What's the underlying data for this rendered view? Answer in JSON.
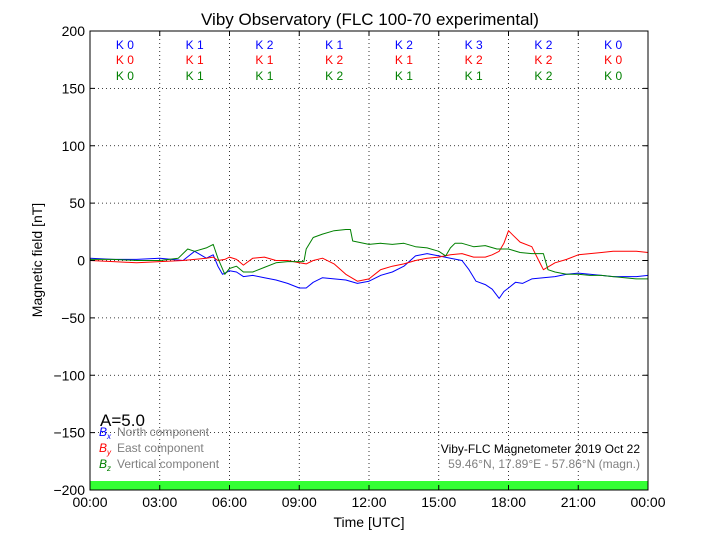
{
  "chart_data": {
    "type": "line",
    "title": "Viby Observatory (FLC 100-70 experimental)",
    "xlabel": "Time [UTC]",
    "ylabel": "Magnetic field [nT]",
    "xlim": [
      0,
      24
    ],
    "ylim": [
      -200,
      200
    ],
    "x_ticks": [
      "00:00",
      "03:00",
      "06:00",
      "09:00",
      "12:00",
      "15:00",
      "18:00",
      "21:00",
      "00:00"
    ],
    "y_ticks": [
      "200",
      "150",
      "100",
      "50",
      "0",
      "−50",
      "−100",
      "−150",
      "−200"
    ],
    "grid": true,
    "k_indices": {
      "north": {
        "color": "#0000ff",
        "labels": [
          "K 0",
          "K 1",
          "K 2",
          "K 1",
          "K 2",
          "K 3",
          "K 2",
          "K 0"
        ]
      },
      "east": {
        "color": "#ff0000",
        "labels": [
          "K 0",
          "K 1",
          "K 1",
          "K 2",
          "K 1",
          "K 2",
          "K 2",
          "K 0"
        ]
      },
      "vertical": {
        "color": "#008000",
        "labels": [
          "K 0",
          "K 1",
          "K 1",
          "K 2",
          "K 1",
          "K 1",
          "K 2",
          "K 0"
        ]
      }
    },
    "a_index": "A=5.0",
    "legend": [
      {
        "symbol": "B",
        "sub": "x",
        "label": "North component",
        "color": "#0000ff"
      },
      {
        "symbol": "B",
        "sub": "y",
        "label": "East component",
        "color": "#ff0000"
      },
      {
        "symbol": "B",
        "sub": "z",
        "label": "Vertical component",
        "color": "#008000"
      }
    ],
    "legend_placement": "lower-left",
    "info_line1": "Viby-FLC Magnetometer 2019 Oct 22",
    "info_line2": "59.46°N, 17.89°E - 57.86°N (magn.)",
    "quiet_bar_color": "#33ff33",
    "series": [
      {
        "name": "North component",
        "color": "#0000ff",
        "x": [
          0,
          1,
          2,
          3,
          4,
          4.5,
          5,
          5.3,
          5.5,
          5.7,
          6,
          6.3,
          6.6,
          7,
          7.5,
          8,
          8.5,
          9,
          9.3,
          9.6,
          10,
          10.5,
          11,
          11.5,
          12,
          12.5,
          13,
          13.5,
          14,
          14.5,
          15,
          15.5,
          16,
          16.3,
          16.6,
          17,
          17.3,
          17.6,
          17.8,
          18,
          18.3,
          18.6,
          19,
          19.5,
          20,
          20.5,
          21,
          21.5,
          22,
          22.5,
          23,
          23.5,
          24
        ],
        "y": [
          2,
          1,
          1,
          2,
          0,
          8,
          2,
          5,
          -5,
          -12,
          -9,
          -10,
          -14,
          -13,
          -15,
          -17,
          -20,
          -24,
          -24,
          -19,
          -15,
          -16,
          -17,
          -20,
          -18,
          -13,
          -10,
          -5,
          4,
          6,
          4,
          2,
          0,
          -8,
          -18,
          -21,
          -25,
          -33,
          -27,
          -24,
          -19,
          -20,
          -16,
          -15,
          -14,
          -12,
          -11,
          -12,
          -13,
          -14,
          -14,
          -14,
          -13
        ]
      },
      {
        "name": "East component",
        "color": "#ff0000",
        "x": [
          0,
          1,
          2,
          3,
          4,
          4.5,
          5,
          5.3,
          5.5,
          5.8,
          6,
          6.3,
          6.6,
          7,
          7.5,
          8,
          8.5,
          9,
          9.3,
          9.6,
          10,
          10.5,
          11,
          11.5,
          12,
          12.5,
          13,
          13.5,
          14,
          14.5,
          15,
          15.5,
          16,
          16.5,
          17,
          17.3,
          17.6,
          17.8,
          18,
          18.2,
          18.5,
          19,
          19.3,
          19.5,
          20,
          20.5,
          21,
          21.5,
          22,
          22.5,
          23,
          23.5,
          24
        ],
        "y": [
          0,
          -1,
          -2,
          -1,
          0,
          1,
          2,
          3,
          0,
          1,
          3,
          1,
          -4,
          2,
          3,
          0,
          0,
          -2,
          -3,
          0,
          2,
          -3,
          -12,
          -18,
          -16,
          -8,
          -5,
          -3,
          0,
          2,
          3,
          5,
          6,
          3,
          3,
          5,
          8,
          15,
          26,
          22,
          16,
          12,
          0,
          -8,
          -2,
          1,
          5,
          6,
          7,
          8,
          8,
          8,
          7
        ]
      },
      {
        "name": "Vertical component",
        "color": "#008000",
        "x": [
          0,
          1,
          2,
          3,
          3.8,
          4.2,
          4.5,
          5,
          5.3,
          5.5,
          5.8,
          6,
          6.3,
          6.6,
          7,
          7.5,
          8,
          8.5,
          9,
          9.2,
          9.3,
          9.6,
          10,
          10.5,
          11,
          11.2,
          11.3,
          12,
          12.5,
          13,
          13.5,
          14,
          14.5,
          15,
          15.3,
          15.5,
          15.7,
          16,
          16.5,
          17,
          17.5,
          18,
          18.5,
          19,
          19.5,
          19.7,
          20,
          20.5,
          21,
          21.5,
          22,
          22.5,
          23,
          23.5,
          24
        ],
        "y": [
          1,
          1,
          0,
          0,
          2,
          10,
          8,
          11,
          14,
          2,
          -12,
          -7,
          -5,
          -10,
          -10,
          -6,
          -2,
          -1,
          -1,
          -1,
          10,
          20,
          23,
          26,
          27,
          27,
          17,
          14,
          15,
          14,
          15,
          12,
          11,
          8,
          4,
          11,
          15,
          15,
          12,
          13,
          10,
          10,
          7,
          6,
          6,
          -8,
          -10,
          -12,
          -12,
          -13,
          -13,
          -14,
          -15,
          -16,
          -16
        ]
      }
    ]
  }
}
